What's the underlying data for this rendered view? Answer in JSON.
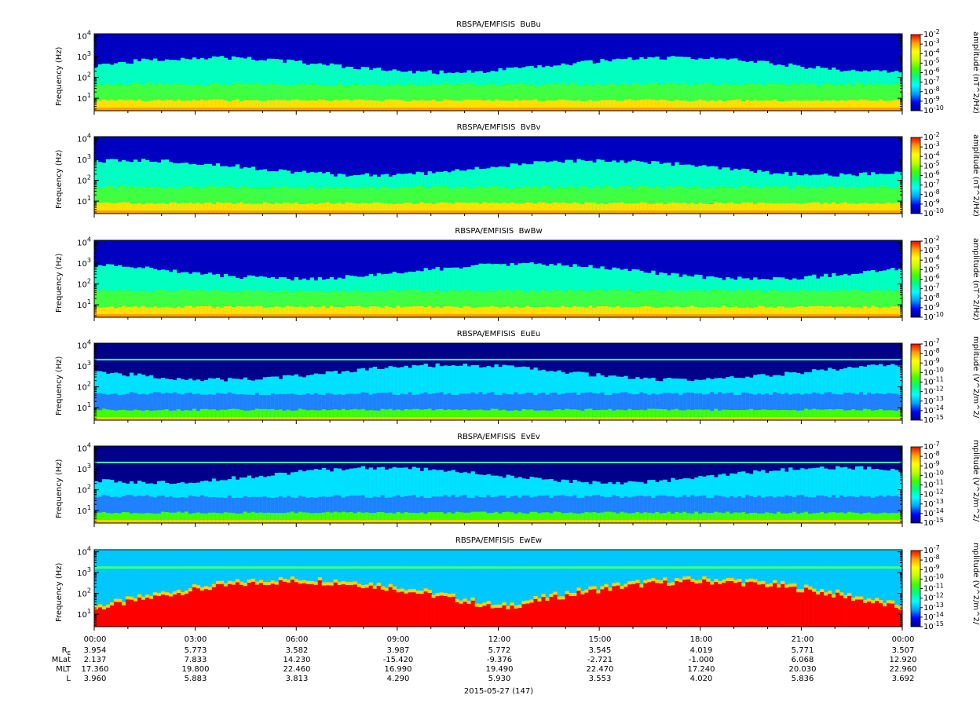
{
  "chart_data": [
    {
      "type": "heatmap",
      "title": "RBSPA/EMFISIS  BuBu",
      "ylabel": "Frequency (Hz)",
      "yscale": "log",
      "yticks": [
        "10^1",
        "10^2",
        "10^3",
        "10^4"
      ],
      "colorbar_label": "amplitude (nT^2/Hz)",
      "colorbar_ticks": [
        "10^-2",
        "10^-3",
        "10^-4",
        "10^-5",
        "10^-6",
        "10^-7",
        "10^-8",
        "10^-9",
        "10^-10"
      ],
      "variant": "B"
    },
    {
      "type": "heatmap",
      "title": "RBSPA/EMFISIS  BvBv",
      "ylabel": "Frequency (Hz)",
      "yscale": "log",
      "yticks": [
        "10^1",
        "10^2",
        "10^3",
        "10^4"
      ],
      "colorbar_label": "amplitude (nT^2/Hz)",
      "colorbar_ticks": [
        "10^-2",
        "10^-3",
        "10^-4",
        "10^-5",
        "10^-6",
        "10^-7",
        "10^-8",
        "10^-9",
        "10^-10"
      ],
      "variant": "B"
    },
    {
      "type": "heatmap",
      "title": "RBSPA/EMFISIS  BwBw",
      "ylabel": "Frequency (Hz)",
      "yscale": "log",
      "yticks": [
        "10^1",
        "10^2",
        "10^3",
        "10^4"
      ],
      "colorbar_label": "amplitude (nT^2/Hz)",
      "colorbar_ticks": [
        "10^-2",
        "10^-3",
        "10^-4",
        "10^-5",
        "10^-6",
        "10^-7",
        "10^-8",
        "10^-9",
        "10^-10"
      ],
      "variant": "B"
    },
    {
      "type": "heatmap",
      "title": "RBSPA/EMFISIS  EuEu",
      "ylabel": "Frequency (Hz)",
      "yscale": "log",
      "yticks": [
        "10^1",
        "10^2",
        "10^3",
        "10^4"
      ],
      "colorbar_label": "mplitude (V^2/m^2/",
      "colorbar_ticks": [
        "10^-7",
        "10^-8",
        "10^-9",
        "10^-10",
        "10^-11",
        "10^-12",
        "10^-13",
        "10^-14",
        "10^-15"
      ],
      "variant": "E"
    },
    {
      "type": "heatmap",
      "title": "RBSPA/EMFISIS  EvEv",
      "ylabel": "Frequency (Hz)",
      "yscale": "log",
      "yticks": [
        "10^1",
        "10^2",
        "10^3",
        "10^4"
      ],
      "colorbar_label": "mplitude (V^2/m^2/",
      "colorbar_ticks": [
        "10^-7",
        "10^-8",
        "10^-9",
        "10^-10",
        "10^-11",
        "10^-12",
        "10^-13",
        "10^-14",
        "10^-15"
      ],
      "variant": "E"
    },
    {
      "type": "heatmap",
      "title": "RBSPA/EMFISIS  EwEw",
      "ylabel": "Frequency (Hz)",
      "yscale": "log",
      "yticks": [
        "10^1",
        "10^2",
        "10^3",
        "10^4"
      ],
      "colorbar_label": "mplitude (V^2/m^2/",
      "colorbar_ticks": [
        "10^-7",
        "10^-8",
        "10^-9",
        "10^-10",
        "10^-11",
        "10^-12",
        "10^-13",
        "10^-14",
        "10^-15"
      ],
      "variant": "Ew"
    }
  ],
  "colorscale": [
    "#000080",
    "#0000ff",
    "#00a0ff",
    "#00ffff",
    "#00ff80",
    "#40ff00",
    "#c0ff00",
    "#ffff00",
    "#ffa000",
    "#ff0000"
  ],
  "x_axis": {
    "ticks": [
      "00:00",
      "03:00",
      "06:00",
      "09:00",
      "12:00",
      "15:00",
      "18:00",
      "21:00",
      "00:00"
    ],
    "date_label": "2015-05-27 (147)"
  },
  "ephemeris": {
    "labels": [
      "R",
      "MLat",
      "MLT",
      "L"
    ],
    "re_subscript": "E",
    "rows": [
      [
        "3.954",
        "5.773",
        "3.582",
        "3.987",
        "5.772",
        "3.545",
        "4.019",
        "5.771",
        "3.507"
      ],
      [
        "2.137",
        "7.833",
        "14.230",
        "-15.420",
        "-9.376",
        "-2.721",
        "-1.000",
        "6.068",
        "12.920"
      ],
      [
        "17.360",
        "19.800",
        "22.460",
        "16.990",
        "19.490",
        "22.470",
        "17.240",
        "20.030",
        "22.960"
      ],
      [
        "3.960",
        "5.883",
        "3.813",
        "4.290",
        "5.930",
        "3.553",
        "4.020",
        "5.836",
        "3.692"
      ]
    ]
  }
}
